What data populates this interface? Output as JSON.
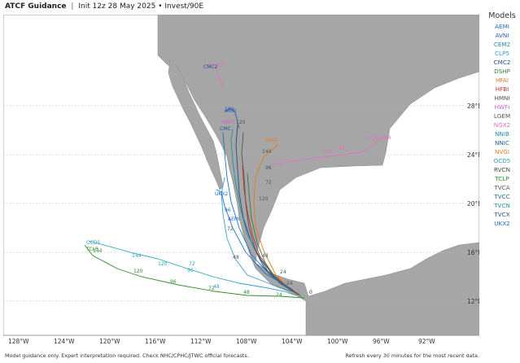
{
  "header": {
    "title": "ATCF Guidance",
    "init": "Init 12z 28 May 2025",
    "bullet": "•",
    "storm": "Invest/90E"
  },
  "legend": {
    "title": "Models",
    "items": [
      {
        "name": "AEMI",
        "color": "#1f6fc5"
      },
      {
        "name": "AVNI",
        "color": "#2b5fb0"
      },
      {
        "name": "CEM2",
        "color": "#1f8fa8"
      },
      {
        "name": "CLP5",
        "color": "#3aa0c8"
      },
      {
        "name": "CMC2",
        "color": "#1f4f8f"
      },
      {
        "name": "DSHP",
        "color": "#2f7f3f"
      },
      {
        "name": "HFAI",
        "color": "#e07a20"
      },
      {
        "name": "HFBI",
        "color": "#c03030"
      },
      {
        "name": "HMNI",
        "color": "#555555"
      },
      {
        "name": "HWFI",
        "color": "#d060d0"
      },
      {
        "name": "LGEM",
        "color": "#555555"
      },
      {
        "name": "NGX2",
        "color": "#e070c0"
      },
      {
        "name": "NNIB",
        "color": "#1f8fa8"
      },
      {
        "name": "NNIC",
        "color": "#1f5f8f"
      },
      {
        "name": "NVGI",
        "color": "#e07a20"
      },
      {
        "name": "OCD5",
        "color": "#2fa0c0"
      },
      {
        "name": "RVCN",
        "color": "#444444"
      },
      {
        "name": "TCLP",
        "color": "#2f8f2f"
      },
      {
        "name": "TVCA",
        "color": "#555555"
      },
      {
        "name": "TVCC",
        "color": "#1f6f9f"
      },
      {
        "name": "TVCN",
        "color": "#1f8fa8"
      },
      {
        "name": "TVCX",
        "color": "#1f4f8f"
      },
      {
        "name": "UKX2",
        "color": "#1f6fc5"
      }
    ]
  },
  "map": {
    "land_color": "#a6a6a6",
    "water_color": "#ffffff",
    "longitude_labels": [
      "128°W",
      "124°W",
      "120°W",
      "116°W",
      "112°W",
      "108°W",
      "104°W",
      "100°W",
      "96°W",
      "92°W"
    ],
    "latitude_labels": [
      "28°N",
      "24°N",
      "20°N",
      "16°N",
      "12°N"
    ],
    "track_hour_labels": {
      "ngx2": [
        "120",
        "96",
        "144"
      ],
      "hwfi_avni": [
        "120",
        "120",
        "120"
      ],
      "tclp": [
        "144",
        "120",
        "96",
        "72",
        "48",
        "24",
        "0"
      ],
      "ocd5": [
        "144",
        "120",
        "96",
        "72",
        "48"
      ],
      "cluster": [
        "96",
        "72",
        "48",
        "24",
        "120",
        "144",
        "96",
        "72",
        "48",
        "24"
      ]
    },
    "model_tags": [
      "CMC2",
      "AVNI",
      "HWFI",
      "CMC",
      "NVGI",
      "UKX2",
      "AEMI",
      "NGX2",
      "OCD5",
      "TCLP"
    ]
  },
  "footer": {
    "left": "Model guidance only. Expert interpretation required. Check NHC/CPHC/JTWC official forecasts.",
    "right": "Refresh every 30 minutes for the most recent data."
  }
}
